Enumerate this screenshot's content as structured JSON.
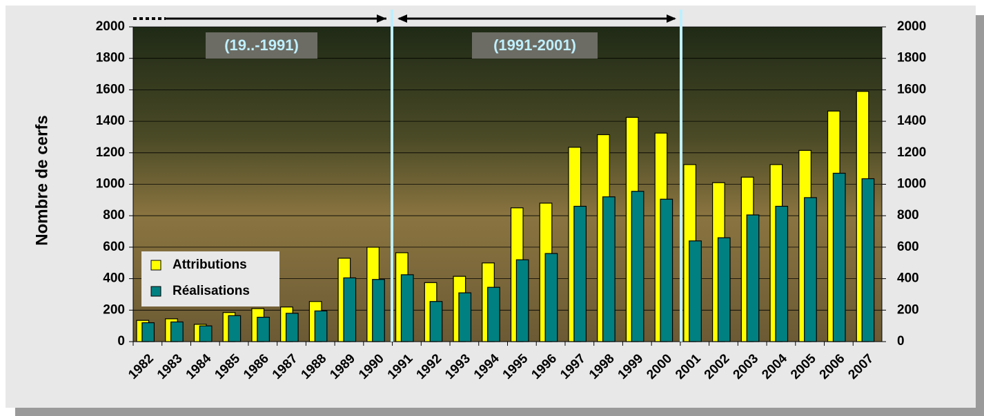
{
  "chart_data": {
    "type": "bar",
    "y_label": "Nombre de cerfs",
    "annotations": [
      "(19..-1991)",
      "(1991-2001)"
    ],
    "categories": [
      "1982",
      "1983",
      "1984",
      "1985",
      "1986",
      "1987",
      "1988",
      "1989",
      "1990",
      "1991",
      "1992",
      "1993",
      "1994",
      "1995",
      "1996",
      "1997",
      "1998",
      "1999",
      "2000",
      "2001",
      "2002",
      "2003",
      "2004",
      "2005",
      "2006",
      "2007"
    ],
    "series": [
      {
        "name": "Attributions",
        "color": "#ffff00",
        "values": [
          135,
          145,
          110,
          185,
          210,
          220,
          255,
          530,
          600,
          565,
          375,
          415,
          500,
          850,
          880,
          1235,
          1315,
          1425,
          1325,
          1125,
          1010,
          1045,
          1125,
          1215,
          1465,
          1590
        ]
      },
      {
        "name": "Réalisations",
        "color": "#008080",
        "values": [
          120,
          125,
          100,
          165,
          155,
          180,
          195,
          405,
          395,
          425,
          255,
          310,
          345,
          520,
          560,
          860,
          920,
          955,
          905,
          640,
          660,
          805,
          860,
          915,
          1070,
          1035
        ]
      }
    ],
    "ylim": [
      0,
      2000
    ],
    "yticks": [
      0,
      200,
      400,
      600,
      800,
      1000,
      1200,
      1400,
      1600,
      1800,
      2000
    ],
    "y2lim": [
      0,
      2000
    ],
    "y2ticks": [
      0,
      200,
      400,
      600,
      800,
      1000,
      1200,
      1400,
      1600,
      1800,
      2000
    ],
    "grid": true,
    "legend": "lower-left"
  }
}
